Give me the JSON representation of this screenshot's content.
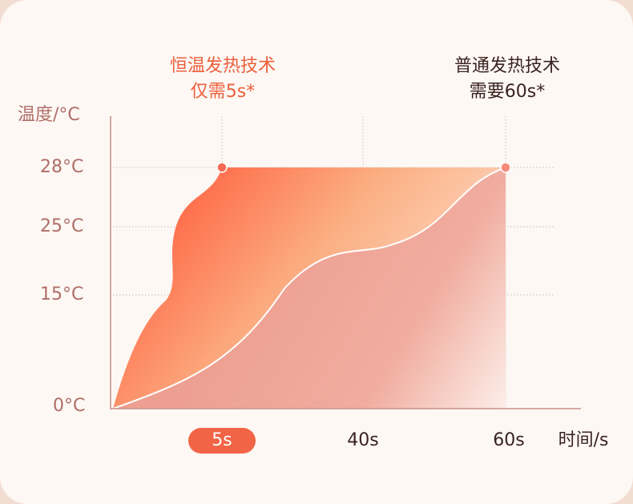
{
  "chart_data": {
    "type": "area",
    "ylabel": "温度/°C",
    "xlabel": "时间/s",
    "y_ticks": [
      "28°C",
      "25°C",
      "15°C",
      "0°C"
    ],
    "x_ticks": [
      "5s",
      "40s",
      "60s"
    ],
    "highlighted_x_tick": "5s",
    "series": [
      {
        "name": "恒温发热技术",
        "x": [
          0,
          5,
          60
        ],
        "y": [
          0,
          28,
          28
        ]
      },
      {
        "name": "普通发热技术",
        "x": [
          0,
          5,
          20,
          40,
          60
        ],
        "y": [
          0,
          5,
          15,
          20,
          28
        ]
      }
    ],
    "annotations": [
      {
        "series": "恒温发热技术",
        "lines": [
          "恒温发热技术",
          "仅需5s*"
        ],
        "marker_at": [
          5,
          28
        ]
      },
      {
        "series": "普通发热技术",
        "lines": [
          "普通发热技术",
          "需要60s*"
        ],
        "marker_at": [
          60,
          28
        ]
      }
    ],
    "colors": {
      "accent": "#ec5f3d",
      "fast_area_start": "#ff5a3c",
      "fast_area_end": "#fde6d6",
      "slow_area": "#eda091",
      "axis": "#c88f88",
      "grid": "#cfc6c2",
      "marker": "#f46a55"
    },
    "grid": true
  }
}
